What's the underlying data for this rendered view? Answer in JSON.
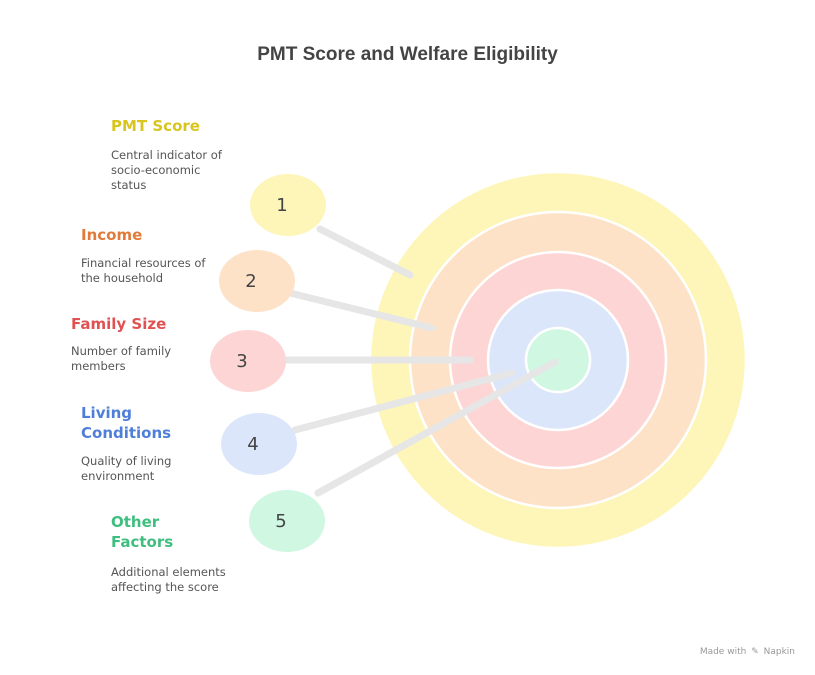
{
  "title": "PMT Score and Welfare Eligibility",
  "footer": {
    "made_with": "Made with",
    "brand": "Napkin"
  },
  "items": [
    {
      "number": "1",
      "label": "PMT Score",
      "description": "Central indicator of socio-economic status",
      "color": "#d9c51e",
      "fill": "#fdf6b8"
    },
    {
      "number": "2",
      "label": "Income",
      "description": "Financial resources of the household",
      "color": "#e07b3a",
      "fill": "#fde2c8"
    },
    {
      "number": "3",
      "label": "Family Size",
      "description": "Number of family members",
      "color": "#e05252",
      "fill": "#fdd5d5"
    },
    {
      "number": "4",
      "label": "Living Conditions",
      "description": "Quality of living environment",
      "color": "#4f7fd9",
      "fill": "#dce6fb"
    },
    {
      "number": "5",
      "label": "Other Factors",
      "description": "Additional elements affecting the score",
      "color": "#3fbf7f",
      "fill": "#cff7e2"
    }
  ],
  "rings": [
    {
      "fill": "#fdf6b8"
    },
    {
      "fill": "#fde2c8"
    },
    {
      "fill": "#fdd5d5"
    },
    {
      "fill": "#dce6fb"
    },
    {
      "fill": "#cff7e2"
    }
  ]
}
